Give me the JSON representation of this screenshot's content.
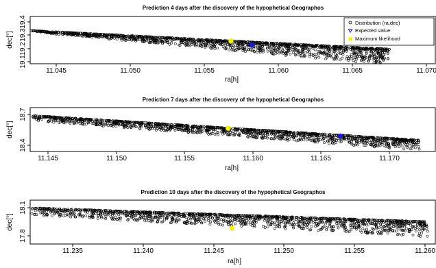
{
  "chart_data": [
    {
      "type": "scatter",
      "title": "Prediction 4 days after the discovery of the hypophetical Geographos",
      "xlabel": "ra[h]",
      "ylabel": "dec[°]",
      "xlim": [
        11.0425,
        11.0705
      ],
      "ylim": [
        19.08,
        19.41
      ],
      "xticks": [
        "11.045",
        "11.050",
        "11.055",
        "11.060",
        "11.065",
        "11.070"
      ],
      "yticks": [
        "19.1",
        "19.2",
        "19.3",
        "19.4"
      ],
      "legend": {
        "position": "top-right",
        "entries": [
          "Distribution (ra,dec)",
          "Expected value",
          "Maximum likelihood"
        ]
      },
      "band": {
        "x_start": 11.0433,
        "x_end": 11.0675,
        "dec_upper_start": 19.335,
        "dec_upper_end": 19.195,
        "dec_spread_start": 0.01,
        "dec_spread_end": 0.12
      },
      "series": [
        {
          "name": "Expected value",
          "x": [
            11.0582
          ],
          "y": [
            19.225
          ],
          "color": "#1a1adb"
        },
        {
          "name": "Maximum likelihood",
          "x": [
            11.0568
          ],
          "y": [
            19.255
          ],
          "color": "#f2f200"
        }
      ]
    },
    {
      "type": "scatter",
      "title": "Prediction 7 days after the discovery of the hypophetical Geographos",
      "xlabel": "ra[h]",
      "ylabel": "dec[°]",
      "xlim": [
        11.1438,
        11.1725
      ],
      "ylim": [
        18.36,
        18.76
      ],
      "xticks": [
        "11.145",
        "11.150",
        "11.155",
        "11.160",
        "11.165",
        "11.170"
      ],
      "yticks": [
        "18.4",
        "18.7"
      ],
      "band": {
        "x_start": 11.1438,
        "x_end": 11.1722,
        "dec_upper_start": 18.69,
        "dec_upper_end": 18.45,
        "dec_spread_start": 0.05,
        "dec_spread_end": 0.1
      },
      "series": [
        {
          "name": "Expected value",
          "x": [
            11.1664
          ],
          "y": [
            18.49
          ],
          "color": "#1a1adb"
        },
        {
          "name": "Maximum likelihood",
          "x": [
            11.1582
          ],
          "y": [
            18.565
          ],
          "color": "#f2f200"
        }
      ]
    },
    {
      "type": "scatter",
      "title": "Prediction 10 days after the discovery of the hypophetical Geographos",
      "xlabel": "ra[h]",
      "ylabel": "dec[°]",
      "xlim": [
        11.2318,
        11.2602
      ],
      "ylim": [
        17.72,
        18.16
      ],
      "xticks": [
        "11.235",
        "11.240",
        "11.245",
        "11.250",
        "11.255",
        "11.260"
      ],
      "yticks": [
        "17.8",
        "18.1"
      ],
      "band": {
        "x_start": 11.2318,
        "x_end": 11.2602,
        "dec_upper_start": 18.1,
        "dec_upper_end": 17.95,
        "dec_spread_start": 0.08,
        "dec_spread_end": 0.16
      },
      "series": [
        {
          "name": "Maximum likelihood",
          "x": [
            11.2463
          ],
          "y": [
            17.88
          ],
          "color": "#f2f200"
        }
      ]
    }
  ]
}
